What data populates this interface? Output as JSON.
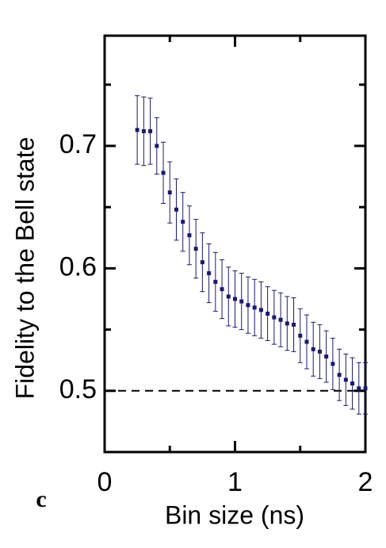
{
  "chart_data": {
    "type": "scatter",
    "panel_label": "c",
    "x_label": "Bin size (ns)",
    "y_label": "Fidelity to the Bell state",
    "x": [
      0.25,
      0.3,
      0.35,
      0.4,
      0.45,
      0.5,
      0.55,
      0.6,
      0.65,
      0.7,
      0.75,
      0.8,
      0.85,
      0.9,
      0.95,
      1.0,
      1.05,
      1.1,
      1.15,
      1.2,
      1.25,
      1.3,
      1.35,
      1.4,
      1.45,
      1.5,
      1.55,
      1.6,
      1.65,
      1.7,
      1.75,
      1.8,
      1.85,
      1.9,
      1.95,
      2.0
    ],
    "values": [
      0.713,
      0.712,
      0.712,
      0.7,
      0.678,
      0.662,
      0.648,
      0.638,
      0.627,
      0.616,
      0.605,
      0.596,
      0.589,
      0.583,
      0.577,
      0.575,
      0.573,
      0.57,
      0.568,
      0.566,
      0.563,
      0.56,
      0.558,
      0.555,
      0.554,
      0.545,
      0.54,
      0.534,
      0.532,
      0.528,
      0.522,
      0.513,
      0.509,
      0.506,
      0.502,
      0.502
    ],
    "errors": [
      0.028,
      0.028,
      0.027,
      0.023,
      0.025,
      0.025,
      0.025,
      0.024,
      0.024,
      0.024,
      0.024,
      0.024,
      0.024,
      0.024,
      0.024,
      0.023,
      0.023,
      0.023,
      0.023,
      0.023,
      0.022,
      0.022,
      0.022,
      0.022,
      0.022,
      0.022,
      0.022,
      0.022,
      0.022,
      0.021,
      0.021,
      0.021,
      0.021,
      0.021,
      0.021,
      0.021
    ],
    "color": "#1a1a6e",
    "reference_line": 0.5,
    "xlim": [
      0,
      2
    ],
    "xticks": [
      0,
      1,
      2
    ],
    "xminor_ticks": [
      0.5,
      1.5
    ],
    "ylim": [
      0.45,
      0.79
    ],
    "yticks": [
      0.5,
      0.6,
      0.7
    ],
    "yminor_ticks": [
      0.55,
      0.65,
      0.75
    ]
  }
}
